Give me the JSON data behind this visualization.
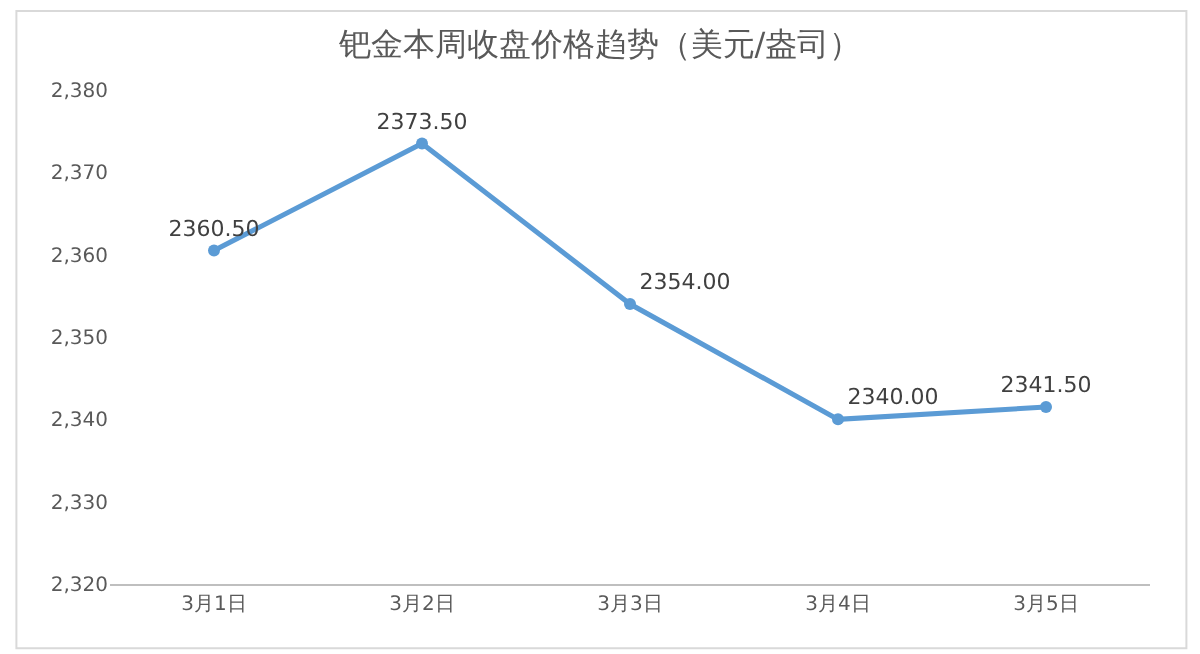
{
  "chart_data": {
    "type": "line",
    "title": "钯金本周收盘价格趋势（美元/盎司）",
    "categories": [
      "3月1日",
      "3月2日",
      "3月3日",
      "3月4日",
      "3月5日"
    ],
    "series": [
      {
        "color": "#5b9bd5",
        "values": [
          2360.5,
          2373.5,
          2354.0,
          2340.0,
          2341.5
        ],
        "value_labels": [
          "2360.50",
          "2373.50",
          "2354.00",
          "2340.00",
          "2341.50"
        ]
      }
    ],
    "ylim": [
      2320,
      2380
    ],
    "yticks": [
      {
        "value": 2320,
        "label": "2,320"
      },
      {
        "value": 2330,
        "label": "2,330"
      },
      {
        "value": 2340,
        "label": "2,340"
      },
      {
        "value": 2350,
        "label": "2,350"
      },
      {
        "value": 2360,
        "label": "2,360"
      },
      {
        "value": 2370,
        "label": "2,370"
      },
      {
        "value": 2380,
        "label": "2,380"
      }
    ],
    "marker": "circle",
    "line_style": "solid",
    "grid": false
  }
}
